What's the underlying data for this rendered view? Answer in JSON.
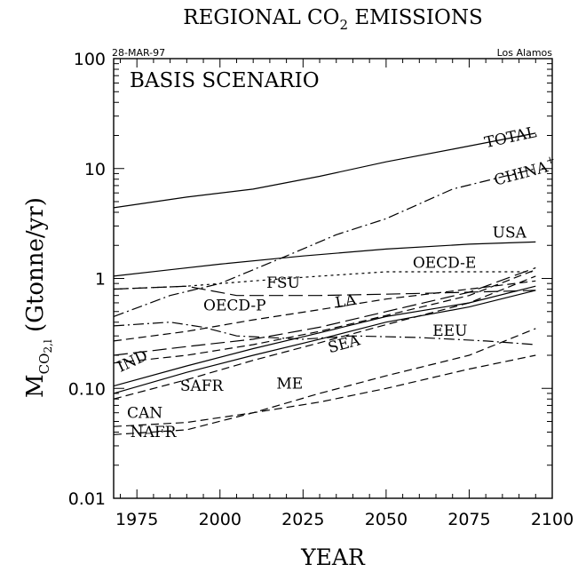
{
  "chart_data": {
    "type": "line",
    "title": "REGIONAL CO2 EMISSIONS",
    "title_main": "REGIONAL CO",
    "title_sub": "2",
    "title_tail": " EMISSIONS",
    "date_stamp": "28-MAR-97",
    "source_stamp": "Los Alamos",
    "scenario": "BASIS SCENARIO",
    "xlabel": "YEAR",
    "ylabel": "M_CO2,l (Gtonne/yr)",
    "ylabel_main": "M",
    "ylabel_sub": "CO",
    "ylabel_sub2": "2,l",
    "ylabel_tail": " (Gtonne/yr)",
    "y_scale": "log",
    "xlim": [
      1968,
      2100
    ],
    "ylim": [
      0.01,
      100
    ],
    "x_ticks": [
      1975,
      2000,
      2025,
      2050,
      2075,
      2100
    ],
    "x_tick_labels": [
      "1975",
      "2000",
      "2025",
      "2050",
      "2075",
      "2100"
    ],
    "y_ticks": [
      0.01,
      0.1,
      1,
      10,
      100
    ],
    "y_tick_labels": [
      "0.01",
      "0.10",
      "1",
      "10",
      "100"
    ],
    "grid": false,
    "legend": "none (series labeled inline)",
    "line_color": "#000000",
    "series": [
      {
        "name": "TOTAL",
        "label": "TOTAL",
        "label_sup": "",
        "dash": "solid",
        "label_pos": [
          2080,
          15.5
        ],
        "label_angle": -12,
        "x": [
          1968,
          1990,
          2010,
          2030,
          2050,
          2070,
          2095
        ],
        "y": [
          4.4,
          5.5,
          6.5,
          8.5,
          11.5,
          15,
          21
        ]
      },
      {
        "name": "CHINA+",
        "label": "CHINA",
        "label_sup": "+",
        "dash": "dashdot",
        "label_pos": [
          2083,
          7.0
        ],
        "label_angle": -15,
        "x": [
          1968,
          1985,
          2000,
          2020,
          2035,
          2050,
          2070,
          2095
        ],
        "y": [
          0.45,
          0.7,
          0.9,
          1.6,
          2.5,
          3.5,
          6.5,
          10
        ]
      },
      {
        "name": "USA",
        "label": "USA",
        "label_sup": "",
        "dash": "solid",
        "label_pos": [
          2082,
          2.35
        ],
        "label_angle": 0,
        "x": [
          1968,
          1985,
          2000,
          2025,
          2050,
          2075,
          2095
        ],
        "y": [
          1.05,
          1.2,
          1.35,
          1.6,
          1.85,
          2.05,
          2.15
        ]
      },
      {
        "name": "OECD-E",
        "label": "OECD-E",
        "label_sup": "",
        "dash": "dot",
        "label_pos": [
          2058,
          1.25
        ],
        "label_angle": 0,
        "x": [
          1968,
          1990,
          2010,
          2030,
          2050,
          2075,
          2095
        ],
        "y": [
          0.8,
          0.85,
          0.95,
          1.05,
          1.15,
          1.15,
          1.15
        ]
      },
      {
        "name": "FSU",
        "label": "FSU",
        "label_sup": "",
        "dash": "longdash",
        "label_pos": [
          2014,
          0.82
        ],
        "label_angle": 0,
        "x": [
          1968,
          1990,
          2005,
          2030,
          2050,
          2075,
          2095
        ],
        "y": [
          0.8,
          0.85,
          0.7,
          0.7,
          0.72,
          0.75,
          0.78
        ]
      },
      {
        "name": "OECD-P",
        "label": "OECD-P",
        "label_sup": "",
        "dash": "dash",
        "label_pos": [
          1995,
          0.51
        ],
        "label_angle": 0,
        "x": [
          1968,
          1990,
          2010,
          2030,
          2050,
          2075,
          2095
        ],
        "y": [
          0.27,
          0.33,
          0.42,
          0.52,
          0.65,
          0.8,
          0.95
        ]
      },
      {
        "name": "LA",
        "label": "LA",
        "label_sup": "",
        "dash": "longdash",
        "label_pos": [
          2035,
          0.54
        ],
        "label_angle": -10,
        "x": [
          1968,
          1990,
          2010,
          2030,
          2050,
          2075,
          2095
        ],
        "y": [
          0.2,
          0.24,
          0.28,
          0.36,
          0.5,
          0.75,
          1.25
        ]
      },
      {
        "name": "EEU",
        "label": "EEU",
        "label_sup": "",
        "dash": "dashdot",
        "label_pos": [
          2064,
          0.3
        ],
        "label_angle": 0,
        "x": [
          1968,
          1985,
          1995,
          2005,
          2025,
          2040,
          2060,
          2080,
          2095
        ],
        "y": [
          0.37,
          0.4,
          0.36,
          0.3,
          0.28,
          0.3,
          0.29,
          0.27,
          0.25
        ]
      },
      {
        "name": "IND",
        "label": "IND",
        "label_sup": "",
        "dash": "solid",
        "label_pos": [
          1970,
          0.14
        ],
        "label_angle": -25,
        "x": [
          1968,
          1990,
          2010,
          2030,
          2050,
          2075,
          2095
        ],
        "y": [
          0.105,
          0.16,
          0.23,
          0.32,
          0.45,
          0.6,
          0.85
        ]
      },
      {
        "name": "SEA",
        "label": "SEA",
        "label_sup": "",
        "dash": "solid",
        "label_pos": [
          2033,
          0.21
        ],
        "label_angle": -15,
        "x": [
          1968,
          1990,
          2010,
          2030,
          2050,
          2075,
          2095
        ],
        "y": [
          0.09,
          0.14,
          0.2,
          0.28,
          0.4,
          0.55,
          0.78
        ]
      },
      {
        "name": "SAFR",
        "label": "SAFR",
        "label_sup": "",
        "dash": "dash",
        "label_pos": [
          1988,
          0.095
        ],
        "label_angle": 0,
        "x": [
          1968,
          1990,
          2010,
          2030,
          2050,
          2075,
          2095
        ],
        "y": [
          0.08,
          0.12,
          0.18,
          0.26,
          0.38,
          0.6,
          1.05
        ]
      },
      {
        "name": "ME",
        "label": "ME",
        "label_sup": "",
        "dash": "dash",
        "label_pos": [
          2017,
          0.1
        ],
        "label_angle": 0,
        "x": [
          1968,
          1990,
          2010,
          2030,
          2050,
          2075,
          2095
        ],
        "y": [
          0.17,
          0.2,
          0.25,
          0.33,
          0.46,
          0.7,
          1.2
        ]
      },
      {
        "name": "CAN",
        "label": "CAN",
        "label_sup": "",
        "dash": "dash",
        "label_pos": [
          1972,
          0.054
        ],
        "label_angle": 0,
        "x": [
          1968,
          1990,
          2010,
          2030,
          2050,
          2075,
          2095
        ],
        "y": [
          0.045,
          0.049,
          0.06,
          0.075,
          0.1,
          0.15,
          0.2
        ]
      },
      {
        "name": "NAFR",
        "label": "NAFR",
        "label_sup": "",
        "dash": "dash",
        "label_pos": [
          1973,
          0.036
        ],
        "label_angle": 0,
        "x": [
          1968,
          1990,
          2010,
          2030,
          2050,
          2075,
          2095
        ],
        "y": [
          0.038,
          0.042,
          0.06,
          0.09,
          0.13,
          0.2,
          0.35
        ]
      }
    ]
  }
}
